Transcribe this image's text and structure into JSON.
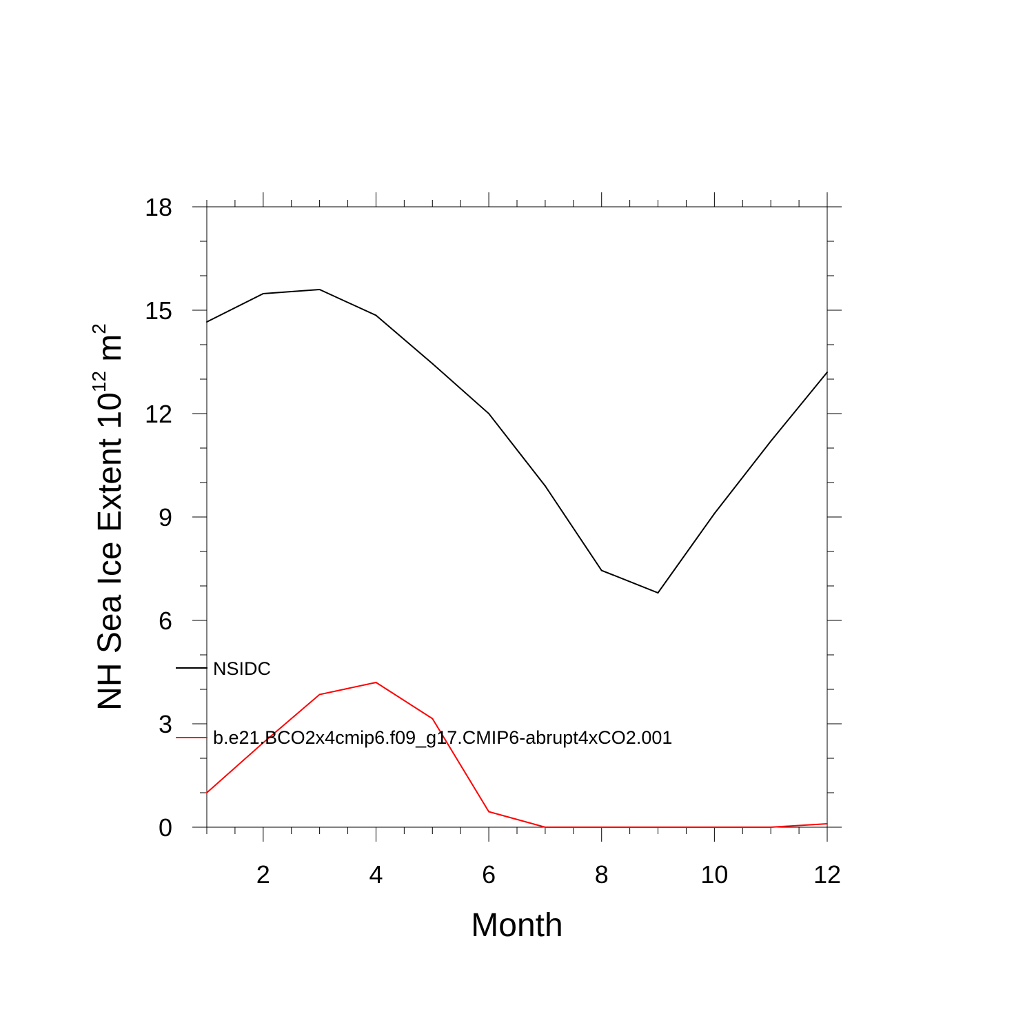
{
  "chart_data": {
    "type": "line",
    "xlabel": "Month",
    "ylabel": {
      "text": "NH Sea Ice Extent 10",
      "exponent": "12",
      "unit": " m",
      "unit_exponent": "2"
    },
    "xlim": [
      1,
      12
    ],
    "ylim": [
      0,
      18
    ],
    "xticks": [
      2,
      4,
      6,
      8,
      10,
      12
    ],
    "yticks": [
      0,
      3,
      6,
      9,
      12,
      15,
      18
    ],
    "grid": false,
    "legend_placement": "lower-left inside",
    "series": [
      {
        "name": "NSIDC",
        "color": "#000000",
        "x": [
          1,
          2,
          3,
          4,
          5,
          6,
          7,
          8,
          9,
          10,
          11,
          12
        ],
        "y": [
          14.66,
          15.48,
          15.6,
          14.85,
          13.45,
          12.0,
          9.9,
          7.45,
          6.8,
          9.1,
          11.2,
          13.2
        ]
      },
      {
        "name": "b.e21.BCO2x4cmip6.f09_g17.CMIP6-abrupt4xCO2.001",
        "color": "#ff0000",
        "x": [
          1,
          2,
          3,
          4,
          5,
          6,
          7,
          8,
          9,
          10,
          11,
          12
        ],
        "y": [
          1.0,
          2.45,
          3.85,
          4.2,
          3.15,
          0.45,
          0.0,
          0.0,
          0.0,
          0.0,
          0.0,
          0.1
        ]
      }
    ]
  }
}
